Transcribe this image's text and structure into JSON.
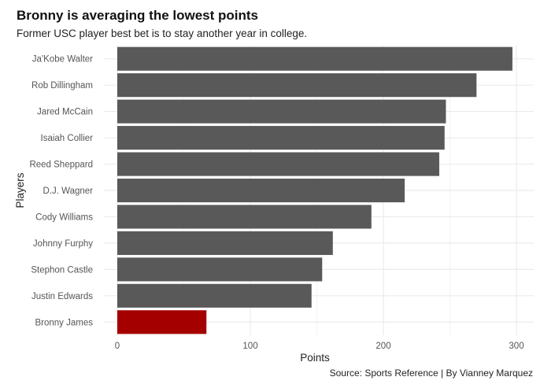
{
  "chart_data": {
    "type": "bar",
    "orientation": "horizontal",
    "title": "Bronny is averaging the lowest points",
    "subtitle": "Former USC player best bet is to stay another year in college.",
    "caption": "Source: Sports Reference | By Vianney Marquez",
    "xlabel": "Points",
    "ylabel": "Players",
    "xlim": [
      0,
      310
    ],
    "xticks": [
      0,
      100,
      200,
      300
    ],
    "grid": true,
    "legend": "none",
    "categories": [
      "Ja'Kobe Walter",
      "Rob Dillingham",
      "Jared McCain",
      "Isaiah Collier",
      "Reed Sheppard",
      "D.J. Wagner",
      "Cody Williams",
      "Johnny Furphy",
      "Stephon Castle",
      "Justin Edwards",
      "Bronny James"
    ],
    "values": [
      297,
      270,
      247,
      246,
      242,
      216,
      191,
      162,
      154,
      146,
      67
    ],
    "highlight": "Bronny James",
    "colors": {
      "default": "#595959",
      "highlight": "#a50000",
      "grid": "#ebebeb"
    }
  }
}
